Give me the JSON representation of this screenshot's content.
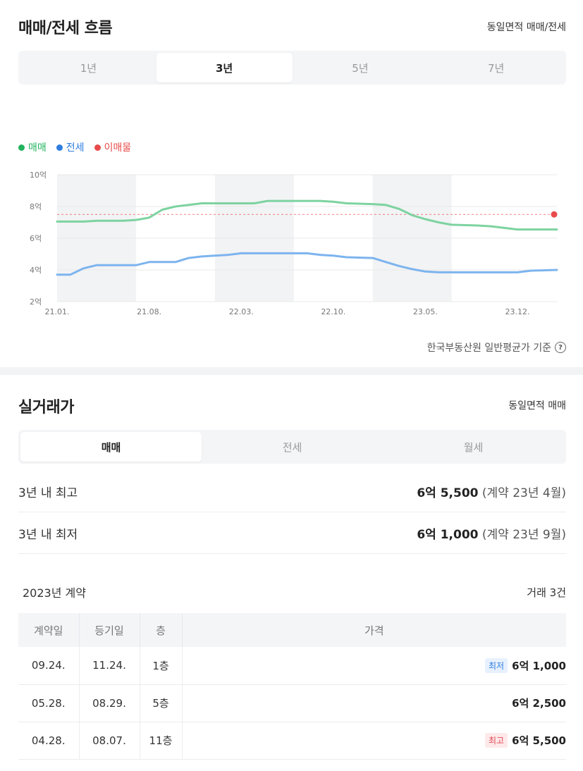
{
  "flow": {
    "title": "매매/전세 흐름",
    "right_link": "동일면적 매매/전세",
    "periods": [
      "1년",
      "3년",
      "5년",
      "7년"
    ],
    "selected_period": "3년",
    "legend": [
      {
        "label": "매매",
        "color": "#22b35e"
      },
      {
        "label": "전세",
        "color": "#2f7de1"
      },
      {
        "label": "이매물",
        "color": "#e94a4a"
      }
    ],
    "source": "한국부동산원 일반평균가 기준",
    "help_icon": "question-circle-icon"
  },
  "chart_data": {
    "type": "line",
    "title": "",
    "xlabel": "",
    "ylabel": "",
    "x_ticks": [
      "21.01.",
      "21.08.",
      "22.03.",
      "22.10.",
      "23.05.",
      "23.12."
    ],
    "y_ticks": [
      "10억",
      "8억",
      "6억",
      "4억",
      "2억"
    ],
    "ylim": [
      2,
      10
    ],
    "y_unit": "억",
    "xlim": [
      "21.01.",
      "24.03."
    ],
    "shaded_bands": [
      [
        "21.01.",
        "21.07."
      ],
      [
        "22.01.",
        "22.07."
      ],
      [
        "23.01.",
        "23.07."
      ]
    ],
    "grid": true,
    "legend_position": "top-left",
    "series": [
      {
        "name": "매매",
        "color": "#7dd3a0",
        "points": [
          [
            "21.01.",
            7.05
          ],
          [
            "21.03.",
            7.05
          ],
          [
            "21.04.",
            7.1
          ],
          [
            "21.06.",
            7.1
          ],
          [
            "21.07.",
            7.15
          ],
          [
            "21.08.",
            7.3
          ],
          [
            "21.09.",
            7.8
          ],
          [
            "21.10.",
            8.0
          ],
          [
            "21.12.",
            8.2
          ],
          [
            "22.04.",
            8.2
          ],
          [
            "22.05.",
            8.35
          ],
          [
            "22.09.",
            8.35
          ],
          [
            "22.10.",
            8.3
          ],
          [
            "22.11.",
            8.2
          ],
          [
            "23.01.",
            8.15
          ],
          [
            "23.02.",
            8.1
          ],
          [
            "23.03.",
            7.85
          ],
          [
            "23.04.",
            7.45
          ],
          [
            "23.05.",
            7.2
          ],
          [
            "23.06.",
            7.0
          ],
          [
            "23.07.",
            6.85
          ],
          [
            "23.09.",
            6.8
          ],
          [
            "23.10.",
            6.75
          ],
          [
            "23.11.",
            6.65
          ],
          [
            "23.12.",
            6.55
          ],
          [
            "24.03.",
            6.55
          ]
        ]
      },
      {
        "name": "전세",
        "color": "#7db4ee",
        "points": [
          [
            "21.01.",
            3.7
          ],
          [
            "21.02.",
            3.7
          ],
          [
            "21.03.",
            4.1
          ],
          [
            "21.04.",
            4.3
          ],
          [
            "21.07.",
            4.3
          ],
          [
            "21.08.",
            4.5
          ],
          [
            "21.10.",
            4.5
          ],
          [
            "21.11.",
            4.75
          ],
          [
            "21.12.",
            4.85
          ],
          [
            "22.02.",
            4.95
          ],
          [
            "22.03.",
            5.05
          ],
          [
            "22.08.",
            5.05
          ],
          [
            "22.09.",
            4.95
          ],
          [
            "22.10.",
            4.9
          ],
          [
            "22.11.",
            4.8
          ],
          [
            "23.01.",
            4.75
          ],
          [
            "23.02.",
            4.5
          ],
          [
            "23.03.",
            4.25
          ],
          [
            "23.04.",
            4.05
          ],
          [
            "23.05.",
            3.9
          ],
          [
            "23.06.",
            3.85
          ],
          [
            "23.12.",
            3.85
          ],
          [
            "24.01.",
            3.95
          ],
          [
            "24.03.",
            4.0
          ]
        ]
      }
    ],
    "reference_line": {
      "name": "이매물",
      "value": 7.5,
      "color": "#e94a4a",
      "style": "dashed"
    },
    "marker": {
      "name": "이매물",
      "x": "24.03.",
      "y": 7.5,
      "color": "#e94a4a"
    }
  },
  "actual": {
    "title": "실거래가",
    "right_link": "동일면적 매매",
    "tabs": [
      "매매",
      "전세",
      "월세"
    ],
    "selected_tab": "매매",
    "high": {
      "label": "3년 내 최고",
      "price": "6억 5,500",
      "note": "(계약 23년 4월)"
    },
    "low": {
      "label": "3년 내 최저",
      "price": "6억 1,000",
      "note": "(계약 23년 9월)"
    },
    "year_title": "2023년 계약",
    "trade_count": "거래 3건",
    "columns": [
      "계약일",
      "등기일",
      "층",
      "가격"
    ],
    "rows": [
      {
        "contract": "09.24.",
        "registered": "11.24.",
        "floor": "1층",
        "badge": "최저",
        "badge_type": "low",
        "price": "6억 1,000"
      },
      {
        "contract": "05.28.",
        "registered": "08.29.",
        "floor": "5층",
        "badge": "",
        "badge_type": "",
        "price": "6억 2,500"
      },
      {
        "contract": "04.28.",
        "registered": "08.07.",
        "floor": "11층",
        "badge": "최고",
        "badge_type": "high",
        "price": "6억 5,500"
      }
    ]
  }
}
